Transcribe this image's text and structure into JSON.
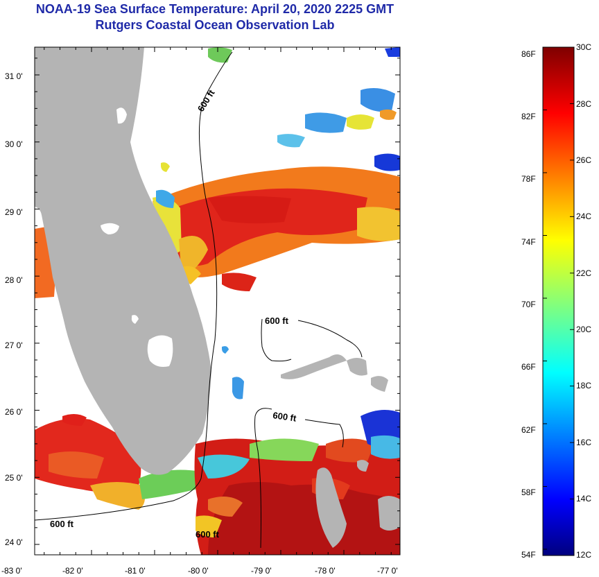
{
  "header": {
    "title": "NOAA-19 Sea Surface Temperature:  April 20, 2020 2225 GMT",
    "subtitle": "Rutgers Coastal Ocean Observation Lab"
  },
  "map": {
    "lon_ticks": [
      "-83 0'",
      "-82 0'",
      "-81 0'",
      "-80 0'",
      "-79 0'",
      "-78 0'",
      "-77 0'"
    ],
    "lat_ticks": [
      "31 0'",
      "30 0'",
      "29 0'",
      "28 0'",
      "27 0'",
      "26 0'",
      "25 0'",
      "24 0'"
    ],
    "contour_labels": [
      "600 ft",
      "600 ft",
      "600 ft",
      "600 ft",
      "600 ft"
    ],
    "land_color": "#b4b4b4",
    "cloud_color": "#ffffff"
  },
  "colorbar": {
    "fahrenheit_labels": [
      "86F",
      "82F",
      "78F",
      "74F",
      "70F",
      "66F",
      "62F",
      "58F",
      "54F"
    ],
    "celsius_labels": [
      "30C",
      "28C",
      "26C",
      "24C",
      "22C",
      "20C",
      "18C",
      "16C",
      "14C",
      "12C"
    ],
    "celsius_range": [
      12,
      30
    ],
    "colormap": "jet"
  }
}
